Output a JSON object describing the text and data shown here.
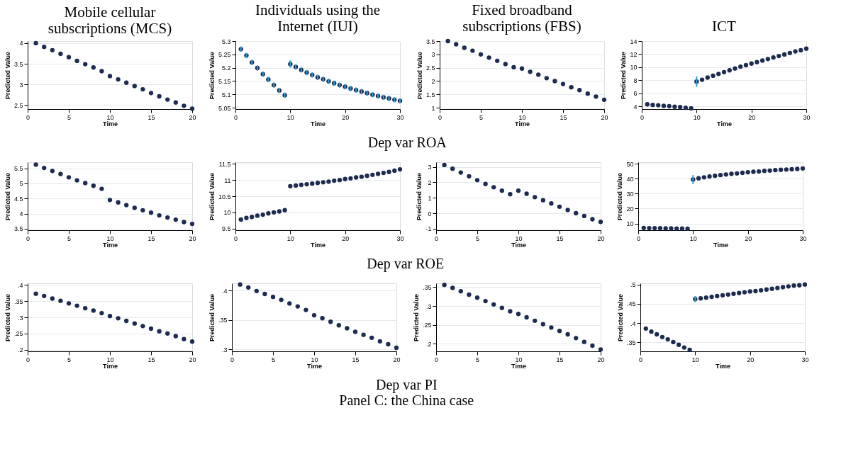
{
  "chart_data": [
    {
      "type": "scatter",
      "title": "Mobile cellular subscriptions (MCS)",
      "xlabel": "Time",
      "ylabel": "Predicted Value",
      "marker": "circle",
      "grid": "y",
      "color": "#1c2b4f",
      "x": [
        1,
        2,
        3,
        4,
        5,
        6,
        7,
        8,
        9,
        10,
        11,
        12,
        13,
        14,
        15,
        16,
        17,
        18,
        19,
        20
      ],
      "values": [
        4.0,
        3.91,
        3.83,
        3.74,
        3.66,
        3.57,
        3.49,
        3.41,
        3.32,
        3.2,
        3.12,
        3.04,
        2.96,
        2.88,
        2.79,
        2.71,
        2.63,
        2.56,
        2.48,
        2.41
      ],
      "xlim": [
        0,
        20
      ],
      "xticks": [
        0,
        5,
        10,
        15,
        20
      ],
      "ylim": [
        2.4,
        4.05
      ],
      "yticks": [
        2.5,
        3,
        3.5,
        4
      ]
    },
    {
      "type": "scatter",
      "title": "Individuals using the Internet (IUI)",
      "xlabel": "Time",
      "ylabel": "Predicted Value",
      "marker": "circle",
      "grid": "y",
      "color": "#1c2b4f",
      "annotations": [
        "Dep var ROA"
      ],
      "x": [
        1,
        2,
        3,
        4,
        5,
        6,
        7,
        8,
        9,
        10,
        11,
        12,
        13,
        14,
        15,
        16,
        17,
        18,
        19,
        20,
        21,
        22,
        23,
        24,
        25,
        26,
        27,
        28,
        29,
        30
      ],
      "values": [
        5.27,
        5.246,
        5.22,
        5.199,
        5.176,
        5.156,
        5.135,
        5.115,
        5.097,
        5.214,
        5.203,
        5.192,
        5.182,
        5.173,
        5.164,
        5.157,
        5.149,
        5.142,
        5.135,
        5.129,
        5.122,
        5.116,
        5.111,
        5.105,
        5.099,
        5.094,
        5.089,
        5.085,
        5.08,
        5.076
      ],
      "errors": [
        0.01,
        0.01,
        0.01,
        0.01,
        0.01,
        0.01,
        0.01,
        0.01,
        0.01,
        0.014,
        0.01,
        0.01,
        0.01,
        0.01,
        0.01,
        0.01,
        0.01,
        0.01,
        0.01,
        0.01,
        0.01,
        0.01,
        0.01,
        0.01,
        0.01,
        0.01,
        0.01,
        0.01,
        0.01,
        0.01
      ],
      "xlim": [
        0,
        30
      ],
      "xticks": [
        0,
        10,
        20,
        30
      ],
      "ylim": [
        5.045,
        5.3
      ],
      "yticks": [
        5.05,
        5.1,
        5.15,
        5.2,
        5.25,
        5.3
      ]
    },
    {
      "type": "scatter",
      "title": "Fixed broadband subscriptions (FBS)",
      "xlabel": "Time",
      "ylabel": "Predicted Value",
      "marker": "circle",
      "grid": "y",
      "color": "#1c2b4f",
      "x": [
        1,
        2,
        3,
        4,
        5,
        6,
        7,
        8,
        9,
        10,
        11,
        12,
        13,
        14,
        15,
        16,
        17,
        18,
        19,
        20
      ],
      "values": [
        3.5,
        3.38,
        3.25,
        3.14,
        3.0,
        2.88,
        2.76,
        2.64,
        2.52,
        2.47,
        2.35,
        2.24,
        2.11,
        2.0,
        1.89,
        1.77,
        1.66,
        1.53,
        1.42,
        1.3
      ],
      "xlim": [
        0,
        20
      ],
      "xticks": [
        0,
        5,
        10,
        15,
        20
      ],
      "ylim": [
        0.95,
        3.5
      ],
      "yticks": [
        1,
        1.5,
        2,
        2.5,
        3,
        3.5
      ]
    },
    {
      "type": "scatter",
      "title": "ICT",
      "xlabel": "Time",
      "ylabel": "Predicted Value",
      "marker": "circle",
      "grid": "y",
      "color": "#1c2b4f",
      "x": [
        1,
        2,
        3,
        4,
        5,
        6,
        7,
        8,
        9,
        10,
        11,
        12,
        13,
        14,
        15,
        16,
        17,
        18,
        19,
        20,
        21,
        22,
        23,
        24,
        25,
        26,
        27,
        28,
        29,
        30
      ],
      "values": [
        4.33,
        4.23,
        4.19,
        4.09,
        4.05,
        3.95,
        3.91,
        3.81,
        3.72,
        7.81,
        8.09,
        8.42,
        8.7,
        8.98,
        9.25,
        9.53,
        9.81,
        10.09,
        10.32,
        10.56,
        10.79,
        11.02,
        11.26,
        11.49,
        11.72,
        11.95,
        12.18,
        12.42,
        12.6,
        12.84
      ],
      "errors": [
        null,
        null,
        null,
        null,
        null,
        null,
        null,
        null,
        null,
        0.8,
        null,
        null,
        null,
        null,
        null,
        null,
        null,
        null,
        null,
        null,
        null,
        null,
        null,
        null,
        null,
        null,
        null,
        null,
        null,
        null
      ],
      "xlim": [
        0,
        30
      ],
      "xticks": [
        0,
        10,
        20,
        30
      ],
      "ylim": [
        3.6,
        14
      ],
      "yticks": [
        4,
        6,
        8,
        10,
        12,
        14
      ]
    },
    {
      "type": "scatter",
      "xlabel": "Time",
      "ylabel": "Predicted Value",
      "marker": "circle",
      "grid": "y",
      "color": "#1c2b4f",
      "x": [
        1,
        2,
        3,
        4,
        5,
        6,
        7,
        8,
        9,
        10,
        11,
        12,
        13,
        14,
        15,
        16,
        17,
        18,
        19,
        20
      ],
      "values": [
        5.62,
        5.51,
        5.41,
        5.31,
        5.2,
        5.1,
        5.01,
        4.92,
        4.82,
        4.45,
        4.37,
        4.28,
        4.19,
        4.11,
        4.03,
        3.94,
        3.87,
        3.8,
        3.72,
        3.66
      ],
      "xlim": [
        0,
        20
      ],
      "xticks": [
        0,
        5,
        10,
        15,
        20
      ],
      "ylim": [
        3.45,
        5.7
      ],
      "yticks": [
        3.5,
        4,
        4.5,
        5,
        5.5
      ]
    },
    {
      "type": "scatter",
      "xlabel": "Time",
      "ylabel": "Predicted Value",
      "marker": "circle",
      "grid": "y",
      "color": "#1c2b4f",
      "annotations": [
        "Dep var ROE"
      ],
      "x": [
        1,
        2,
        3,
        4,
        5,
        6,
        7,
        8,
        9,
        10,
        11,
        12,
        13,
        14,
        15,
        16,
        17,
        18,
        19,
        20,
        21,
        22,
        23,
        24,
        25,
        26,
        27,
        28,
        29,
        30
      ],
      "values": [
        9.78,
        9.83,
        9.86,
        9.9,
        9.93,
        9.97,
        10.0,
        10.03,
        10.07,
        10.81,
        10.83,
        10.85,
        10.87,
        10.89,
        10.91,
        10.93,
        10.95,
        10.98,
        11.0,
        11.03,
        11.05,
        11.08,
        11.1,
        11.13,
        11.16,
        11.19,
        11.22,
        11.25,
        11.29,
        11.33
      ],
      "xlim": [
        0,
        30
      ],
      "xticks": [
        0,
        10,
        20,
        30
      ],
      "ylim": [
        9.45,
        11.55
      ],
      "yticks": [
        9.5,
        10,
        10.5,
        11,
        11.5
      ]
    },
    {
      "type": "scatter",
      "xlabel": "Time",
      "ylabel": "Predicted Value",
      "marker": "circle",
      "grid": "y",
      "color": "#1c2b4f",
      "x": [
        1,
        2,
        3,
        4,
        5,
        6,
        7,
        8,
        9,
        10,
        11,
        12,
        13,
        14,
        15,
        16,
        17,
        18,
        19,
        20
      ],
      "values": [
        3.12,
        2.88,
        2.63,
        2.39,
        2.14,
        1.89,
        1.68,
        1.46,
        1.23,
        1.46,
        1.26,
        1.04,
        0.84,
        0.63,
        0.42,
        0.21,
        0.0,
        -0.18,
        -0.39,
        -0.56
      ],
      "xlim": [
        0,
        20
      ],
      "xticks": [
        0,
        5,
        10,
        15,
        20
      ],
      "ylim": [
        -1.1,
        3.3
      ],
      "yticks": [
        -1,
        0,
        1,
        2,
        3
      ]
    },
    {
      "type": "scatter",
      "xlabel": "Time",
      "ylabel": "Predicted Value",
      "marker": "circle",
      "grid": "y",
      "color": "#1c2b4f",
      "x": [
        1,
        2,
        3,
        4,
        5,
        6,
        7,
        8,
        9,
        10,
        11,
        12,
        13,
        14,
        15,
        16,
        17,
        18,
        19,
        20,
        21,
        22,
        23,
        24,
        25,
        26,
        27,
        28,
        29,
        30
      ],
      "values": [
        7.0,
        6.9,
        6.9,
        6.8,
        6.7,
        6.7,
        6.6,
        6.6,
        6.5,
        39.4,
        40.2,
        40.9,
        41.5,
        41.9,
        42.4,
        42.8,
        43.2,
        43.5,
        43.9,
        44.3,
        44.6,
        44.8,
        45.2,
        45.4,
        45.7,
        45.9,
        46.1,
        46.3,
        46.5,
        46.8
      ],
      "errors": [
        null,
        null,
        null,
        null,
        null,
        null,
        null,
        null,
        null,
        3,
        null,
        null,
        null,
        null,
        null,
        null,
        null,
        null,
        null,
        null,
        null,
        null,
        null,
        null,
        null,
        null,
        null,
        null,
        null,
        null
      ],
      "xlim": [
        0,
        30
      ],
      "xticks": [
        0,
        10,
        20,
        30
      ],
      "ylim": [
        5.5,
        51
      ],
      "yticks": [
        10,
        20,
        30,
        40,
        50
      ]
    },
    {
      "type": "scatter",
      "xlabel": "Time",
      "ylabel": "Predicted Value",
      "marker": "circle",
      "grid": "y",
      "color": "#1c2b4f",
      "x": [
        1,
        2,
        3,
        4,
        5,
        6,
        7,
        8,
        9,
        10,
        11,
        12,
        13,
        14,
        15,
        16,
        17,
        18,
        19,
        20
      ],
      "values": [
        0.373,
        0.366,
        0.358,
        0.351,
        0.343,
        0.336,
        0.328,
        0.321,
        0.313,
        0.304,
        0.297,
        0.289,
        0.281,
        0.273,
        0.265,
        0.257,
        0.25,
        0.242,
        0.233,
        0.225
      ],
      "xlim": [
        0,
        20
      ],
      "xticks": [
        0,
        5,
        10,
        15,
        20
      ],
      "ylim": [
        0.195,
        0.405
      ],
      "yticks": [
        {
          "value": 0.2,
          "label": ".2"
        },
        {
          "value": 0.25,
          "label": ".25"
        },
        {
          "value": 0.3,
          "label": ".3"
        },
        {
          "value": 0.35,
          "label": ".35"
        },
        {
          "value": 0.4,
          "label": ".4"
        }
      ]
    },
    {
      "type": "scatter",
      "xlabel": "Time",
      "ylabel": "Predicted Value",
      "marker": "circle",
      "grid": "y",
      "color": "#1c2b4f",
      "annotations": [
        "Dep var PI",
        "Panel C: the China case"
      ],
      "x": [
        1,
        2,
        3,
        4,
        5,
        6,
        7,
        8,
        9,
        10,
        11,
        12,
        13,
        14,
        15,
        16,
        17,
        18,
        19,
        20
      ],
      "values": [
        0.41,
        0.405,
        0.399,
        0.394,
        0.389,
        0.384,
        0.378,
        0.373,
        0.367,
        0.358,
        0.353,
        0.347,
        0.341,
        0.336,
        0.33,
        0.325,
        0.32,
        0.314,
        0.309,
        0.303
      ],
      "xlim": [
        0,
        20
      ],
      "xticks": [
        0,
        5,
        10,
        15,
        20
      ],
      "ylim": [
        0.297,
        0.412
      ],
      "yticks": [
        {
          "value": 0.3,
          "label": ".3"
        },
        {
          "value": 0.35,
          "label": ".35"
        },
        {
          "value": 0.4,
          "label": ".4"
        }
      ]
    },
    {
      "type": "scatter",
      "xlabel": "Time",
      "ylabel": "Predicted Value",
      "marker": "circle",
      "grid": "y",
      "color": "#1c2b4f",
      "x": [
        1,
        2,
        3,
        4,
        5,
        6,
        7,
        8,
        9,
        10,
        11,
        12,
        13,
        14,
        15,
        16,
        17,
        18,
        19,
        20
      ],
      "values": [
        0.356,
        0.348,
        0.339,
        0.33,
        0.322,
        0.313,
        0.304,
        0.295,
        0.286,
        0.279,
        0.27,
        0.261,
        0.252,
        0.243,
        0.234,
        0.225,
        0.215,
        0.205,
        0.195,
        0.185
      ],
      "xlim": [
        0,
        20
      ],
      "xticks": [
        0,
        5,
        10,
        15,
        20
      ],
      "ylim": [
        0.18,
        0.36
      ],
      "yticks": [
        {
          "value": 0.2,
          "label": ".2"
        },
        {
          "value": 0.25,
          "label": ".25"
        },
        {
          "value": 0.3,
          "label": ".3"
        },
        {
          "value": 0.35,
          "label": ".35"
        }
      ]
    },
    {
      "type": "scatter",
      "xlabel": "Time",
      "ylabel": "Predicted Value",
      "marker": "circle",
      "grid": "y",
      "color": "#1c2b4f",
      "x": [
        1,
        2,
        3,
        4,
        5,
        6,
        7,
        8,
        9,
        10,
        11,
        12,
        13,
        14,
        15,
        16,
        17,
        18,
        19,
        20,
        21,
        22,
        23,
        24,
        25,
        26,
        27,
        28,
        29,
        30
      ],
      "values": [
        0.386,
        0.378,
        0.371,
        0.364,
        0.358,
        0.351,
        0.344,
        0.337,
        0.331,
        0.462,
        0.464,
        0.466,
        0.468,
        0.47,
        0.472,
        0.474,
        0.476,
        0.478,
        0.48,
        0.482,
        0.483,
        0.485,
        0.487,
        0.489,
        0.491,
        0.493,
        0.495,
        0.497,
        0.498,
        0.5
      ],
      "errors": [
        null,
        null,
        null,
        null,
        null,
        null,
        null,
        null,
        null,
        0.008,
        null,
        null,
        null,
        null,
        null,
        null,
        null,
        null,
        null,
        null,
        null,
        null,
        null,
        null,
        null,
        null,
        null,
        null,
        null,
        null
      ],
      "xlim": [
        0,
        30
      ],
      "xticks": [
        0,
        10,
        20,
        30
      ],
      "ylim": [
        0.327,
        0.503
      ],
      "yticks": [
        {
          "value": 0.35,
          "label": ".35"
        },
        {
          "value": 0.4,
          "label": ".4"
        },
        {
          "value": 0.45,
          "label": ".45"
        },
        {
          "value": 0.5,
          "label": ".5"
        }
      ]
    }
  ]
}
